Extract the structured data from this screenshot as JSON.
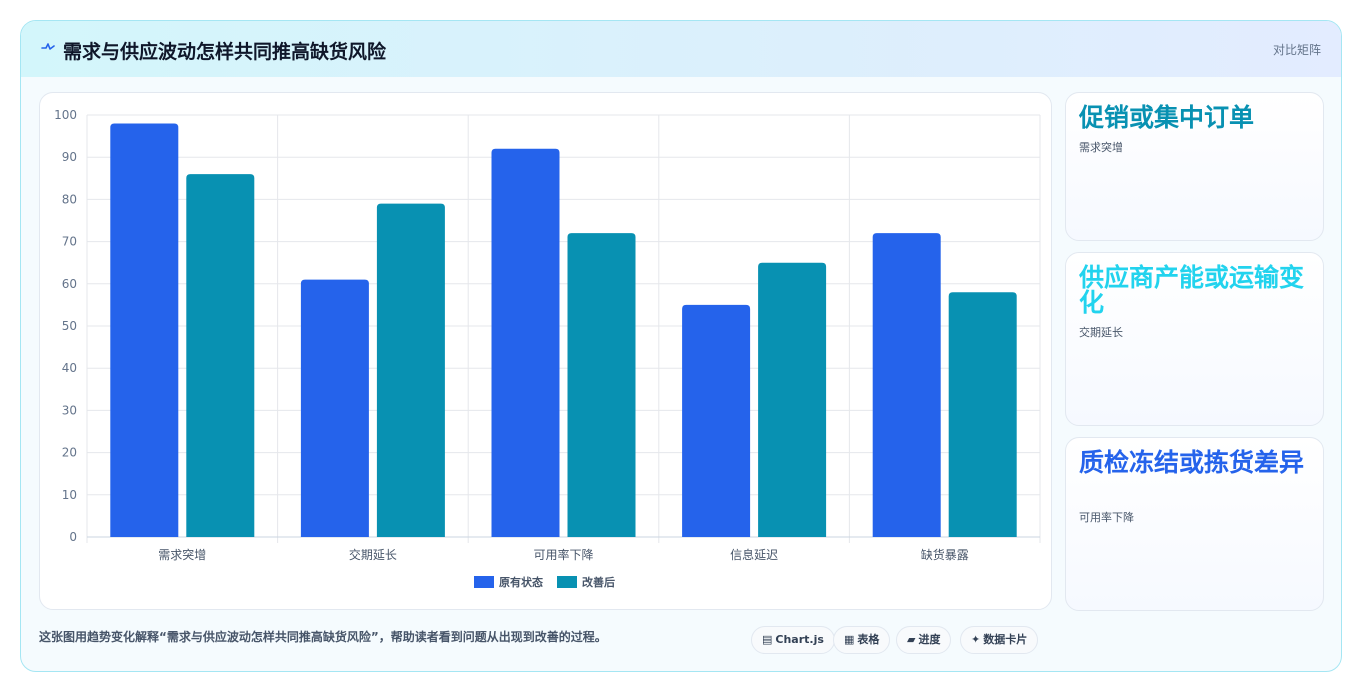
{
  "header": {
    "title": "需求与供应波动怎样共同推高缺货风险",
    "meta": "对比矩阵"
  },
  "chart_data": {
    "type": "bar",
    "categories": [
      "需求突增",
      "交期延长",
      "可用率下降",
      "信息延迟",
      "缺货暴露"
    ],
    "series": [
      {
        "name": "原有状态",
        "values": [
          98,
          61,
          92,
          55,
          72
        ],
        "color": "#2563eb"
      },
      {
        "name": "改善后",
        "values": [
          86,
          79,
          72,
          65,
          58
        ],
        "color": "#0891b2"
      }
    ],
    "ylim": [
      0,
      100
    ],
    "yticks": [
      0,
      10,
      20,
      30,
      40,
      50,
      60,
      70,
      80,
      90,
      100
    ],
    "grid": true,
    "legend": "bottom"
  },
  "cards": [
    {
      "title": "促销或集中订单",
      "subtitle": "需求突增",
      "color": "#0891b2"
    },
    {
      "title": "供应商产能或运输变化",
      "subtitle": "交期延长",
      "color": "#22d3ee"
    },
    {
      "title": "质检冻结或拣货差异",
      "subtitle": "可用率下降",
      "color": "#2563eb"
    }
  ],
  "footer": {
    "description": "这张图用趋势变化解释“需求与供应波动怎样共同推高缺货风险”，帮助读者看到问题从出现到改善的过程。",
    "pills": [
      {
        "icon": "▤",
        "label": "Chart.js"
      },
      {
        "icon": "▦",
        "label": "表格"
      },
      {
        "icon": "▰",
        "label": "进度"
      },
      {
        "icon": "✦",
        "label": "数据卡片"
      }
    ]
  }
}
